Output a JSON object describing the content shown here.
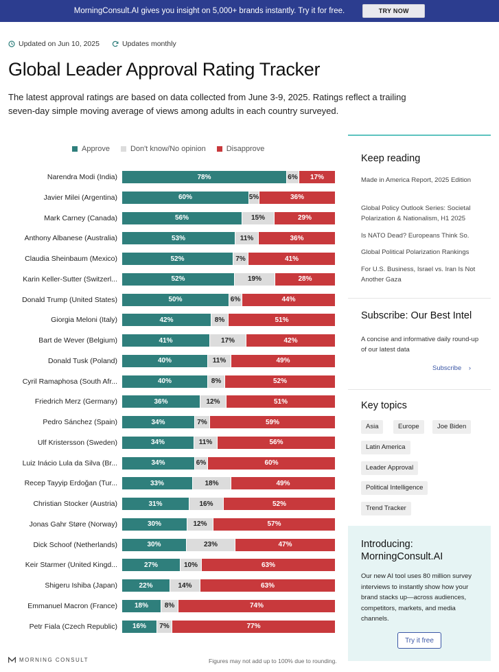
{
  "banner": {
    "text": "MorningConsult.AI gives you insight on 5,000+ brands instantly. Try it for free.",
    "button_label": "TRY NOW",
    "background": "#2c3d8f"
  },
  "meta": {
    "updated": "Updated on Jun 10, 2025",
    "frequency": "Updates monthly"
  },
  "title": "Global Leader Approval Rating Tracker",
  "intro": "The latest approval ratings are based on data collected from June 3-9, 2025. Ratings reflect a trailing seven-day simple moving average of views among adults in each country surveyed.",
  "legend": {
    "approve": "Approve",
    "neutral": "Don't know/No opinion",
    "disapprove": "Disapprove"
  },
  "colors": {
    "approve": "#2f7f7c",
    "neutral": "#dcdcdc",
    "disapprove": "#c8393c",
    "accent": "#5cc3bf",
    "link": "#3a56a5"
  },
  "chart_data": {
    "type": "bar",
    "orientation": "horizontal-stacked-100",
    "categories": [
      "Narendra Modi (India)",
      "Javier Milei (Argentina)",
      "Mark Carney (Canada)",
      "Anthony Albanese (Australia)",
      "Claudia Sheinbaum (Mexico)",
      "Karin Keller-Sutter (Switzerl...",
      "Donald Trump (United States)",
      "Giorgia Meloni (Italy)",
      "Bart de Wever (Belgium)",
      "Donald Tusk (Poland)",
      "Cyril Ramaphosa (South Afr...",
      "Friedrich Merz (Germany)",
      "Pedro Sánchez (Spain)",
      "Ulf Kristersson (Sweden)",
      "Luiz Inácio Lula da Silva (Br...",
      "Recep Tayyip Erdoğan (Tur...",
      "Christian Stocker (Austria)",
      "Jonas Gahr Støre (Norway)",
      "Dick Schoof (Netherlands)",
      "Keir Starmer (United Kingd...",
      "Shigeru Ishiba (Japan)",
      "Emmanuel Macron (France)",
      "Petr Fiala (Czech Republic)"
    ],
    "series": [
      {
        "name": "Approve",
        "values": [
          78,
          60,
          56,
          53,
          52,
          52,
          50,
          42,
          41,
          40,
          40,
          36,
          34,
          34,
          34,
          33,
          31,
          30,
          30,
          27,
          22,
          18,
          16
        ]
      },
      {
        "name": "Don't know/No opinion",
        "values": [
          6,
          5,
          15,
          11,
          7,
          19,
          6,
          8,
          17,
          11,
          8,
          12,
          7,
          11,
          6,
          18,
          16,
          12,
          23,
          10,
          14,
          8,
          7
        ]
      },
      {
        "name": "Disapprove",
        "values": [
          17,
          36,
          29,
          36,
          41,
          28,
          44,
          51,
          42,
          49,
          52,
          51,
          59,
          56,
          60,
          49,
          52,
          57,
          47,
          63,
          63,
          74,
          77
        ]
      }
    ],
    "unit": "%",
    "legend_position": "top"
  },
  "footer": {
    "logo_text": "MORNING CONSULT",
    "note": "Figures may not add up to 100% due to rounding."
  },
  "sidebar": {
    "keep_reading": {
      "title": "Keep reading",
      "links": [
        "Made in America Report, 2025 Edition",
        "Global Policy Outlook Series: Societal Polarization & Nationalism, H1 2025",
        "Is NATO Dead? Europeans Think So.",
        "Global Political Polarization Rankings",
        "For U.S. Business, Israel vs. Iran Is Not Another Gaza"
      ]
    },
    "subscribe": {
      "title": "Subscribe: Our Best Intel",
      "description": "A concise and informative daily round-up of our latest data",
      "link_label": "Subscribe"
    },
    "topics": {
      "title": "Key topics",
      "tags": [
        "Asia",
        "Europe",
        "Joe Biden",
        "Latin America",
        "Leader Approval",
        "Political Intelligence",
        "Trend Tracker"
      ]
    },
    "promo": {
      "title": "Introducing: MorningConsult.AI",
      "description": "Our new AI tool uses 80 million survey interviews to instantly show how your brand stacks up—across audiences, competitors, markets, and media channels.",
      "button_label": "Try it free"
    }
  }
}
